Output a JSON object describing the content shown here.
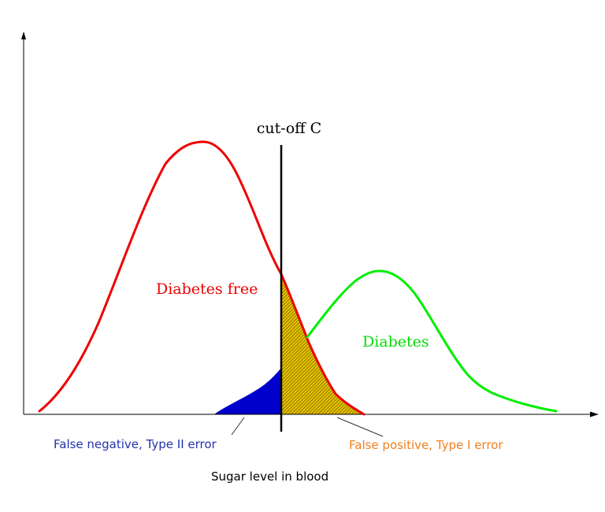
{
  "labels": {
    "cutoff": "cut-off C",
    "diabetes_free": "Diabetes free",
    "diabetes": "Diabetes",
    "false_negative": "False negative, Type II error",
    "false_positive": "False positive, Type I error",
    "x_axis": "Sugar level in blood"
  },
  "colors": {
    "diabetes_free": "#ee0000",
    "diabetes": "#00ee00",
    "false_negative": "#0000cc",
    "false_positive_fill": "#e6c200",
    "false_positive_text": "#f08020",
    "false_negative_text": "#2233aa",
    "axis": "#000000"
  }
}
